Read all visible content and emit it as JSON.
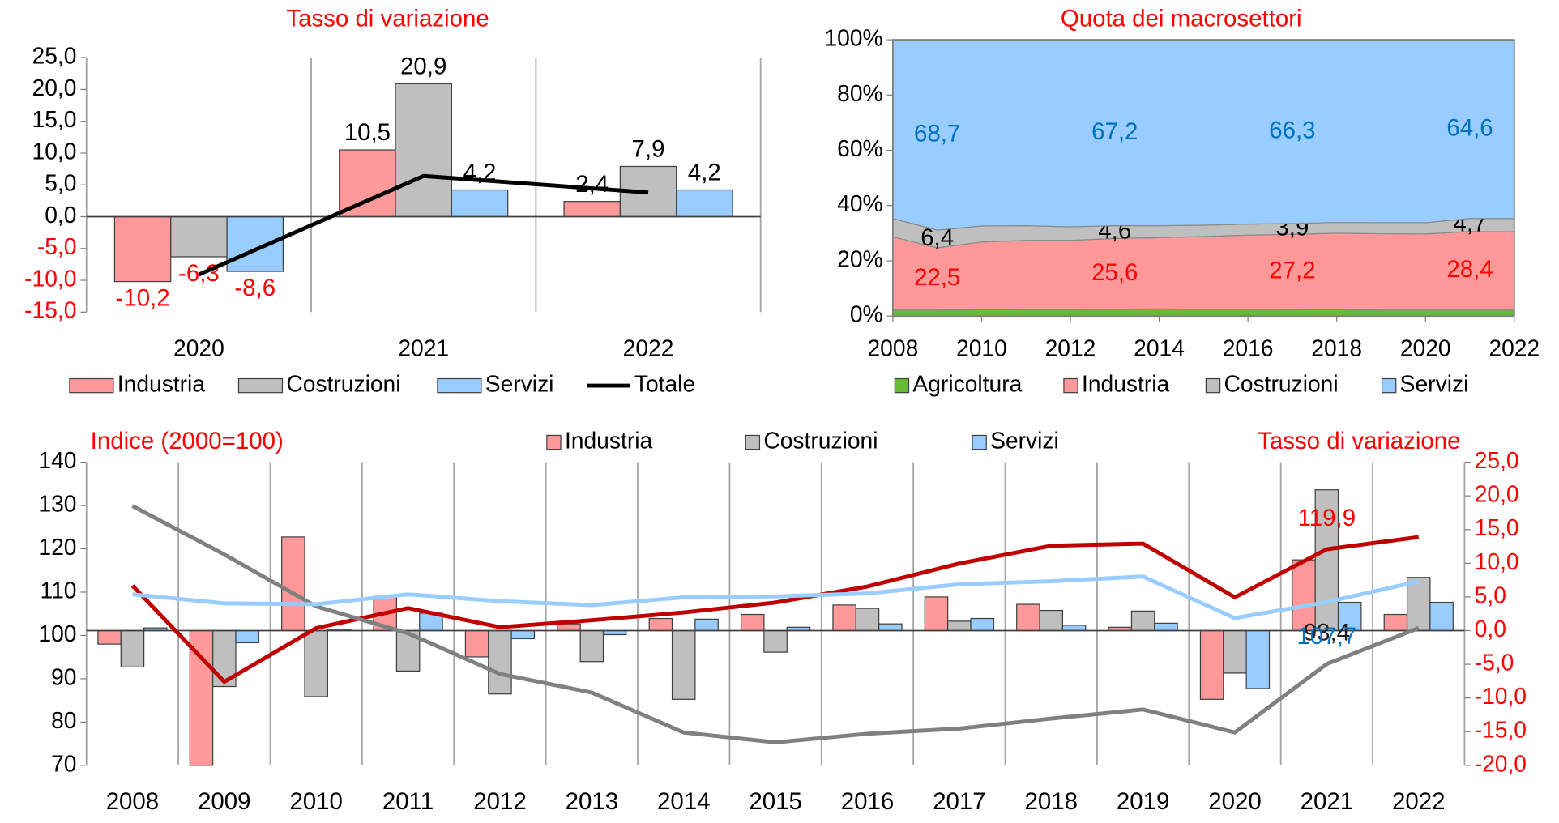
{
  "chart_data": [
    {
      "type": "bar",
      "title": "Tasso di variazione",
      "categories": [
        "2020",
        "2021",
        "2022"
      ],
      "ylim": [
        -15,
        25
      ],
      "yticks": [
        {
          "value": -15,
          "label": "-15,0"
        },
        {
          "value": -10,
          "label": "-10,0"
        },
        {
          "value": -5,
          "label": "-5,0"
        },
        {
          "value": 0,
          "label": "0,0"
        },
        {
          "value": 5,
          "label": "5,0"
        },
        {
          "value": 10,
          "label": "10,0"
        },
        {
          "value": 15,
          "label": "15,0"
        },
        {
          "value": 20,
          "label": "20,0"
        },
        {
          "value": 25,
          "label": "25,0"
        }
      ],
      "series": [
        {
          "name": "Industria",
          "color": "#ff9999",
          "values": [
            -10.2,
            10.5,
            2.4
          ],
          "value_labels": [
            "-10,2",
            "10,5",
            "2,4"
          ]
        },
        {
          "name": "Costruzioni",
          "color": "#bfbfbf",
          "values": [
            -6.3,
            20.9,
            7.9
          ],
          "value_labels": [
            "-6,3",
            "20,9",
            "7,9"
          ]
        },
        {
          "name": "Servizi",
          "color": "#99ccff",
          "values": [
            -8.6,
            4.2,
            4.2
          ],
          "value_labels": [
            "-8,6",
            "4,2",
            "4,2"
          ]
        },
        {
          "name": "Totale",
          "type": "line",
          "color": "#000000",
          "values": [
            -9.1,
            6.4,
            3.8
          ]
        }
      ]
    },
    {
      "type": "area",
      "title": "Quota dei macrosettori",
      "x": [
        2008,
        2009,
        2010,
        2011,
        2012,
        2013,
        2014,
        2015,
        2016,
        2017,
        2018,
        2019,
        2020,
        2021,
        2022
      ],
      "xlim": [
        2008,
        2022
      ],
      "xticks": [
        2008,
        2010,
        2012,
        2014,
        2016,
        2018,
        2020,
        2022
      ],
      "ylim": [
        0,
        100
      ],
      "yticks": [
        {
          "value": 0,
          "label": "0%"
        },
        {
          "value": 20,
          "label": "20%"
        },
        {
          "value": 40,
          "label": "40%"
        },
        {
          "value": 60,
          "label": "60%"
        },
        {
          "value": 80,
          "label": "80%"
        },
        {
          "value": 100,
          "label": "100%"
        }
      ],
      "series": [
        {
          "name": "Agricoltura",
          "color": "#66bb33",
          "values": [
            2.2,
            2.2,
            2.3,
            2.4,
            2.4,
            2.5,
            2.6,
            2.5,
            2.5,
            2.4,
            2.3,
            2.2,
            2.2,
            2.2,
            2.2
          ]
        },
        {
          "name": "Industria",
          "color": "#ff9999",
          "label_color": "#ff0000",
          "values": [
            26.5,
            22.5,
            24.5,
            25.0,
            25.0,
            25.6,
            25.8,
            26.3,
            26.8,
            27.2,
            27.7,
            27.6,
            27.5,
            28.4,
            28.3
          ],
          "value_labels": [
            null,
            "22,5",
            null,
            null,
            null,
            "25,6",
            null,
            null,
            null,
            "27,2",
            null,
            null,
            null,
            "28,4",
            null
          ]
        },
        {
          "name": "Costruzioni",
          "color": "#bfbfbf",
          "label_color": "#000000",
          "values": [
            6.6,
            6.4,
            5.8,
            5.3,
            4.9,
            4.6,
            4.3,
            4.1,
            4.0,
            3.9,
            3.9,
            4.0,
            4.1,
            4.7,
            4.8
          ],
          "value_labels": [
            null,
            "6,4",
            null,
            null,
            null,
            "4,6",
            null,
            null,
            null,
            "3,9",
            null,
            null,
            null,
            "4,7",
            null
          ]
        },
        {
          "name": "Servizi",
          "color": "#99ccff",
          "label_color": "#0070c0",
          "values": [
            64.7,
            68.7,
            67.4,
            67.3,
            67.7,
            67.2,
            67.3,
            67.1,
            66.7,
            66.3,
            66.1,
            66.2,
            66.2,
            64.6,
            64.7
          ],
          "value_labels": [
            null,
            "68,7",
            null,
            null,
            null,
            "67,2",
            null,
            null,
            null,
            "66,3",
            null,
            null,
            null,
            "64,6",
            null
          ]
        }
      ]
    },
    {
      "type": "bar",
      "y_label": "Indice (2000=100)",
      "y2_label": "Tasso di variazione",
      "categories": [
        "2008",
        "2009",
        "2010",
        "2011",
        "2012",
        "2013",
        "2014",
        "2015",
        "2016",
        "2017",
        "2018",
        "2019",
        "2020",
        "2021",
        "2022"
      ],
      "ylim": [
        70,
        140
      ],
      "yticks": [
        70,
        80,
        90,
        100,
        110,
        120,
        130,
        140
      ],
      "y2lim": [
        -20,
        25
      ],
      "y2ticks": [
        {
          "value": -20,
          "label": "-20,0"
        },
        {
          "value": -15,
          "label": "-15,0"
        },
        {
          "value": -10,
          "label": "-10,0"
        },
        {
          "value": -5,
          "label": "-5,0"
        },
        {
          "value": 0,
          "label": "0,0"
        },
        {
          "value": 5,
          "label": "5,0"
        },
        {
          "value": 10,
          "label": "10,0"
        },
        {
          "value": 15,
          "label": "15,0"
        },
        {
          "value": 20,
          "label": "20,0"
        },
        {
          "value": 25,
          "label": "25,0"
        }
      ],
      "series": [
        {
          "name": "Industria",
          "axis": "y2",
          "color": "#ff9999",
          "values": [
            -2.0,
            -20.0,
            13.9,
            5.1,
            -3.9,
            1.0,
            1.8,
            2.4,
            3.8,
            5.0,
            3.9,
            0.5,
            -10.2,
            10.5,
            2.4
          ]
        },
        {
          "name": "Costruzioni",
          "axis": "y2",
          "color": "#bfbfbf",
          "values": [
            -5.4,
            -8.3,
            -9.8,
            -6.0,
            -9.4,
            -4.6,
            -10.2,
            -3.2,
            3.3,
            1.4,
            3.0,
            2.9,
            -6.3,
            20.9,
            7.9
          ]
        },
        {
          "name": "Servizi",
          "axis": "y2",
          "color": "#99ccff",
          "values": [
            0.4,
            -1.8,
            0.2,
            2.6,
            -1.2,
            -0.6,
            1.7,
            0.5,
            1.0,
            1.8,
            0.8,
            1.1,
            -8.6,
            4.2,
            4.2
          ]
        },
        {
          "type": "line",
          "color": "#c00000",
          "label_color": "#ff0000",
          "values": [
            111.5,
            89.3,
            101.7,
            106.3,
            101.9,
            103.5,
            105.3,
            107.6,
            111.3,
            116.6,
            120.7,
            121.2,
            108.8,
            119.9,
            122.7
          ],
          "value_labels": [
            null,
            null,
            null,
            null,
            null,
            null,
            null,
            null,
            null,
            null,
            null,
            null,
            null,
            "119,9",
            null
          ]
        },
        {
          "type": "line",
          "color": "#808080",
          "label_color": "#1f1f1f",
          "values": [
            129.9,
            118.7,
            106.7,
            100.5,
            91.1,
            86.8,
            77.6,
            75.3,
            77.3,
            78.5,
            80.8,
            82.9,
            77.6,
            93.4,
            101.7
          ],
          "value_labels": [
            null,
            null,
            null,
            null,
            null,
            null,
            null,
            null,
            null,
            null,
            null,
            null,
            null,
            "93,4",
            null
          ]
        },
        {
          "type": "line",
          "color": "#99ccff",
          "label_color": "#0070c0",
          "values": [
            109.5,
            107.4,
            107.2,
            109.5,
            107.9,
            107.0,
            108.8,
            109.0,
            109.7,
            111.8,
            112.5,
            113.6,
            104.0,
            107.7,
            112.5
          ],
          "value_labels": [
            null,
            null,
            null,
            null,
            null,
            null,
            null,
            null,
            null,
            null,
            null,
            null,
            null,
            "107,7",
            null
          ]
        }
      ]
    }
  ]
}
